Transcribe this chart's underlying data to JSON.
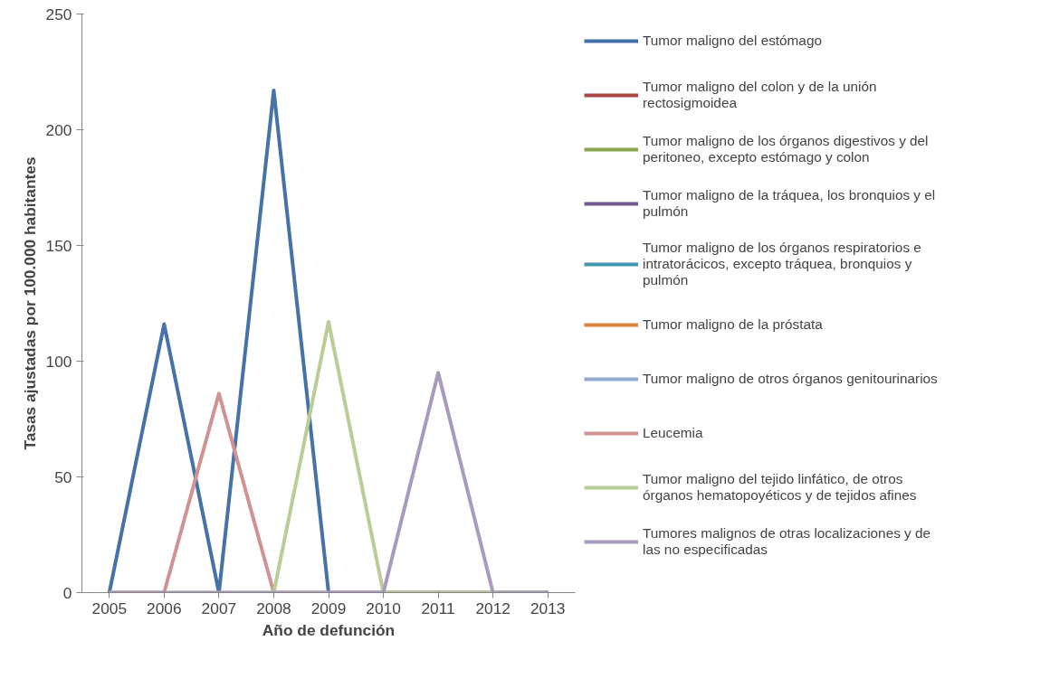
{
  "chart_data": {
    "type": "line",
    "xlabel": "Año de defunción",
    "ylabel": "Tasas ajustadas por 100.000 habitantes",
    "categories": [
      "2005",
      "2006",
      "2007",
      "2008",
      "2009",
      "2010",
      "2011",
      "2012",
      "2013"
    ],
    "ylim": [
      0,
      250
    ],
    "yticks": [
      0,
      50,
      100,
      150,
      200,
      250
    ],
    "grid": false,
    "legend": "right",
    "marker": "none",
    "line_style": "solid",
    "series": [
      {
        "name": "Tumor maligno del estómago",
        "color": "#4572a7",
        "values": [
          0,
          116,
          0,
          217,
          0,
          0,
          0,
          0,
          0
        ]
      },
      {
        "name": "Tumor maligno del colon y de la unión rectosigmoidea",
        "color": "#aa4643",
        "values": [
          null,
          null,
          null,
          null,
          null,
          null,
          null,
          null,
          null
        ]
      },
      {
        "name": "Tumor maligno de los órganos digestivos y del peritoneo, excepto estómago y colon",
        "color": "#89a54e",
        "values": [
          null,
          null,
          null,
          null,
          null,
          null,
          null,
          null,
          null
        ]
      },
      {
        "name": "Tumor maligno de la tráquea, los bronquios y el pulmón",
        "color": "#71588f",
        "values": [
          null,
          null,
          null,
          null,
          null,
          null,
          null,
          null,
          null
        ]
      },
      {
        "name": "Tumor maligno de los órganos respiratorios e intratorácicos, excepto tráquea, bronquios y pulmón",
        "color": "#4198af",
        "values": [
          null,
          null,
          null,
          null,
          null,
          null,
          null,
          null,
          null
        ]
      },
      {
        "name": "Tumor maligno de la próstata",
        "color": "#db843d",
        "values": [
          null,
          null,
          null,
          null,
          null,
          null,
          null,
          null,
          null
        ]
      },
      {
        "name": "Tumor maligno de otros órganos genitourinarios",
        "color": "#93a9cf",
        "values": [
          null,
          null,
          null,
          null,
          null,
          null,
          null,
          null,
          null
        ]
      },
      {
        "name": "Leucemia",
        "color": "#d19392",
        "values": [
          0,
          0,
          86,
          0,
          0,
          0,
          0,
          0,
          0
        ]
      },
      {
        "name": "Tumor maligno del tejido linfático, de otros órganos hematopoyéticos y de tejidos afines",
        "color": "#b9cd96",
        "values": [
          0,
          0,
          0,
          0,
          117,
          0,
          0,
          0,
          0
        ]
      },
      {
        "name": "Tumores malignos de otras localizaciones y de las no especificadas",
        "color": "#a99bbd",
        "values": [
          0,
          0,
          0,
          0,
          0,
          0,
          95,
          0,
          0
        ]
      }
    ]
  }
}
